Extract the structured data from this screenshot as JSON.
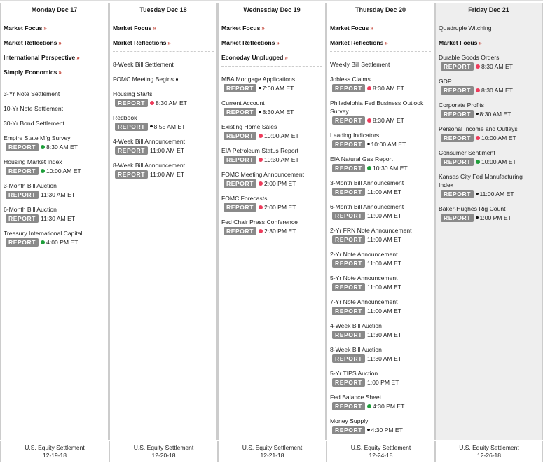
{
  "report_label": "REPORT",
  "colors": {
    "red": "#ee3b5b",
    "green": "#1e9e3a",
    "black": "#111111",
    "report_bg": "#8a8a8a",
    "friday_bg": "#eeeeee"
  },
  "columns": [
    {
      "header": "Monday Dec 17",
      "links": [
        "Market Focus",
        "Market Reflections",
        "International Perspective",
        "Simply Economics"
      ],
      "plain": [],
      "separator": true,
      "items": [
        {
          "title": "3-Yr Note Settlement"
        },
        {
          "title": "10-Yr Note Settlement"
        },
        {
          "title": "30-Yr Bond Settlement"
        },
        {
          "title": "Empire State Mfg Survey",
          "report": true,
          "dot": "green",
          "time": "8:30 AM ET"
        },
        {
          "title": "Housing Market Index",
          "report": true,
          "dot": "green",
          "time": "10:00 AM ET"
        },
        {
          "title": "3-Month Bill Auction",
          "report": true,
          "time": "11:30 AM ET"
        },
        {
          "title": "6-Month Bill Auction",
          "report": true,
          "time": "11:30 AM ET"
        },
        {
          "title": "Treasury International Capital",
          "report": true,
          "dot": "green",
          "time": "4:00 PM ET"
        }
      ],
      "footer": {
        "label": "U.S. Equity Settlement",
        "date": "12-19-18"
      }
    },
    {
      "header": "Tuesday Dec 18",
      "links": [
        "Market Focus",
        "Market Reflections"
      ],
      "plain": [],
      "separator": true,
      "items": [
        {
          "title": "8-Week Bill Settlement"
        },
        {
          "title": "FOMC Meeting Begins",
          "inline_dot": "black"
        },
        {
          "title": "Housing Starts",
          "report": true,
          "dot": "red",
          "time": "8:30 AM ET"
        },
        {
          "title": "Redbook",
          "report": true,
          "dot": "black",
          "time": "8:55 AM ET"
        },
        {
          "title": "4-Week Bill Announcement",
          "report": true,
          "time": "11:00 AM ET"
        },
        {
          "title": "8-Week Bill Announcement",
          "report": true,
          "time": "11:00 AM ET"
        }
      ],
      "footer": {
        "label": "U.S. Equity Settlement",
        "date": "12-20-18"
      }
    },
    {
      "header": "Wednesday Dec 19",
      "links": [
        "Market Focus",
        "Market Reflections",
        "Econoday Unplugged"
      ],
      "plain": [],
      "separator": true,
      "items": [
        {
          "title": "MBA Mortgage Applications",
          "report": true,
          "dot": "black",
          "time": "7:00 AM ET"
        },
        {
          "title": "Current Account",
          "report": true,
          "dot": "black",
          "time": "8:30 AM ET"
        },
        {
          "title": "Existing Home Sales",
          "report": true,
          "dot": "red",
          "time": "10:00 AM ET"
        },
        {
          "title": "EIA Petroleum Status Report",
          "report": true,
          "dot": "red",
          "time": "10:30 AM ET"
        },
        {
          "title": "FOMC Meeting Announcement",
          "report": true,
          "dot": "red",
          "time": "2:00 PM ET"
        },
        {
          "title": "FOMC Forecasts",
          "report": true,
          "dot": "red",
          "time": "2:00 PM ET"
        },
        {
          "title": "Fed Chair Press Conference",
          "report": true,
          "dot": "red",
          "time": "2:30 PM ET"
        }
      ],
      "footer": {
        "label": "U.S. Equity Settlement",
        "date": "12-21-18"
      }
    },
    {
      "header": "Thursday Dec 20",
      "links": [
        "Market Focus",
        "Market Reflections"
      ],
      "plain": [],
      "separator": true,
      "items": [
        {
          "title": "Weekly Bill Settlement"
        },
        {
          "title": "Jobless Claims",
          "report": true,
          "dot": "red",
          "time": "8:30 AM ET"
        },
        {
          "title": "Philadelphia Fed Business Outlook Survey",
          "report": true,
          "dot": "red",
          "time": "8:30 AM ET"
        },
        {
          "title": "Leading Indicators",
          "report": true,
          "dot": "black",
          "time": "10:00 AM ET"
        },
        {
          "title": "EIA Natural Gas Report",
          "report": true,
          "dot": "green",
          "time": "10:30 AM ET"
        },
        {
          "title": "3-Month Bill Announcement",
          "report": true,
          "time": "11:00 AM ET"
        },
        {
          "title": "6-Month Bill Announcement",
          "report": true,
          "time": "11:00 AM ET"
        },
        {
          "title": "2-Yr FRN Note Announcement",
          "report": true,
          "time": "11:00 AM ET"
        },
        {
          "title": "2-Yr Note Announcement",
          "report": true,
          "time": "11:00 AM ET"
        },
        {
          "title": "5-Yr Note Announcement",
          "report": true,
          "time": "11:00 AM ET"
        },
        {
          "title": "7-Yr Note Announcement",
          "report": true,
          "time": "11:00 AM ET"
        },
        {
          "title": "4-Week Bill Auction",
          "report": true,
          "time": "11:30 AM ET"
        },
        {
          "title": "8-Week Bill Auction",
          "report": true,
          "time": "11:30 AM ET"
        },
        {
          "title": "5-Yr TIPS Auction",
          "report": true,
          "time": "1:00 PM ET"
        },
        {
          "title": "Fed Balance Sheet",
          "report": true,
          "dot": "green",
          "time": "4:30 PM ET"
        },
        {
          "title": "Money Supply",
          "report": true,
          "dot": "black",
          "time": "4:30 PM ET"
        }
      ],
      "footer": {
        "label": "U.S. Equity Settlement",
        "date": "12-24-18"
      }
    },
    {
      "header": "Friday Dec 21",
      "plain": [
        "Quadruple Witching"
      ],
      "links": [
        "Market Focus"
      ],
      "separator": false,
      "items": [
        {
          "title": "Durable Goods Orders",
          "report": true,
          "dot": "red",
          "time": "8:30 AM ET"
        },
        {
          "title": "GDP",
          "report": true,
          "dot": "red",
          "time": "8:30 AM ET"
        },
        {
          "title": "Corporate Profits",
          "report": true,
          "dot": "black",
          "time": "8:30 AM ET"
        },
        {
          "title": "Personal Income and Outlays",
          "report": true,
          "dot": "red",
          "time": "10:00 AM ET"
        },
        {
          "title": "Consumer Sentiment",
          "report": true,
          "dot": "green",
          "time": "10:00 AM ET"
        },
        {
          "title": "Kansas City Fed Manufacturing Index",
          "report": true,
          "dot": "black",
          "time": "11:00 AM ET"
        },
        {
          "title": "Baker-Hughes Rig Count",
          "report": true,
          "dot": "black",
          "time": "1:00 PM ET"
        }
      ],
      "footer": {
        "label": "U.S. Equity Settlement",
        "date": "12-26-18"
      }
    }
  ]
}
